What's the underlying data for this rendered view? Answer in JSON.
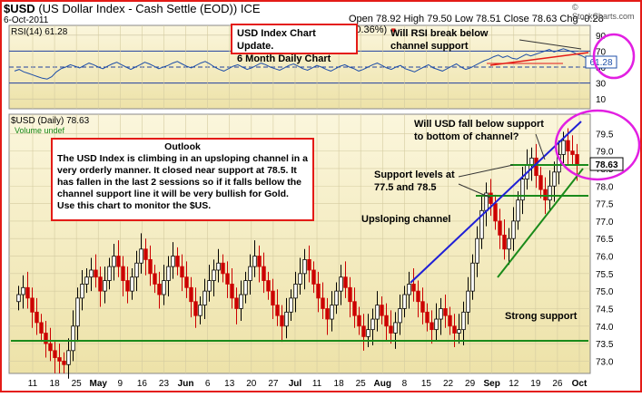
{
  "header": {
    "symbol": "$USD",
    "name": "(US Dollar Index - Cash Settle (EOD))",
    "exchange": "ICE",
    "date": "6-Oct-2011",
    "quote": "Open 78.92  High 79.50  Low 78.51  Close 78.63  Chg -0.28 (-0.36%)",
    "arrow": "▼",
    "watermark": "© StockCharts.com"
  },
  "rsi_panel": {
    "label": "RSI(14) 61.28",
    "current": "61.28",
    "levels": [
      90,
      70,
      50,
      30,
      10
    ],
    "ticks": [
      "90",
      "70",
      "50",
      "30",
      "10"
    ]
  },
  "price_panel": {
    "label": "$USD (Daily) 78.63",
    "volume_label": "Volume undef",
    "current": "78.63",
    "y_ticks": [
      "79.5",
      "79.0",
      "78.5",
      "78.0",
      "77.5",
      "77.0",
      "76.5",
      "76.0",
      "75.5",
      "75.0",
      "74.5",
      "74.0",
      "73.5",
      "73.0"
    ]
  },
  "x_axis": {
    "labels": [
      "11",
      "18",
      "25",
      "May",
      "9",
      "16",
      "23",
      "Jun",
      "6",
      "13",
      "20",
      "27",
      "Jul",
      "11",
      "18",
      "25",
      "Aug",
      "8",
      "15",
      "22",
      "29",
      "Sep",
      "12",
      "19",
      "26",
      "Oct"
    ]
  },
  "annotations": {
    "title_line1": "USD Index Chart Update.",
    "title_line2": "6 Month Daily Chart",
    "rsi_note_line1": "Will RSI break below",
    "rsi_note_line2": "channel support",
    "usd_note_line1": "Will USD fall below support",
    "usd_note_line2": "to bottom of channel?",
    "support_note_line1": "Support levels at",
    "support_note_line2": "77.5 and 78.5",
    "channel_note": "Upsloping channel",
    "strong_support_note": "Strong support",
    "outlook_title": "Outlook",
    "outlook_text": "The USD Index is climbing in an upsloping channel in a very orderly manner. It closed near support at 78.5. It has fallen in the last 2 sessions so if it falls bellow the channel support line it will be very bullish for Gold. Use this chart to monitor the $US."
  },
  "chart_data": [
    {
      "type": "line",
      "title": "RSI(14) 61.28",
      "ylim": [
        0,
        100
      ],
      "reference_lines": [
        70,
        50,
        30
      ],
      "series": [
        {
          "name": "RSI(14)",
          "values": [
            45,
            47,
            44,
            42,
            40,
            38,
            36,
            35,
            38,
            44,
            48,
            50,
            53,
            51,
            49,
            52,
            55,
            53,
            50,
            48,
            51,
            54,
            56,
            53,
            50,
            47,
            50,
            53,
            56,
            54,
            51,
            48,
            50,
            52,
            55,
            57,
            54,
            51,
            49,
            52,
            55,
            57,
            54,
            50,
            47,
            45,
            48,
            51,
            53,
            50,
            47,
            49,
            52,
            55,
            53,
            50,
            48,
            46,
            49,
            52,
            54,
            51,
            48,
            46,
            49,
            52,
            50,
            47,
            45,
            48,
            51,
            53,
            50,
            48,
            45,
            47,
            50,
            53,
            55,
            52,
            49,
            47,
            50,
            52,
            48,
            46,
            44,
            47,
            50,
            53,
            49,
            47,
            45,
            48,
            51,
            54,
            50,
            47,
            49,
            52,
            55,
            58,
            60,
            63,
            65,
            62,
            64,
            61,
            60,
            63,
            66,
            64,
            66,
            68,
            70,
            72,
            69,
            71,
            73,
            71,
            69,
            66,
            64,
            61
          ]
        }
      ]
    },
    {
      "type": "bar",
      "title": "$USD (Daily) 78.63",
      "ylim": [
        72.7,
        80.0
      ],
      "closes": [
        74.9,
        75.1,
        74.8,
        74.4,
        74.1,
        73.8,
        73.5,
        73.3,
        73.1,
        73.0,
        72.9,
        73.3,
        74.0,
        74.8,
        75.2,
        75.4,
        75.6,
        75.4,
        75.0,
        75.3,
        75.7,
        76.0,
        75.7,
        75.3,
        75.0,
        75.4,
        75.8,
        76.2,
        75.9,
        75.5,
        75.2,
        74.9,
        75.3,
        75.7,
        76.0,
        75.7,
        75.4,
        75.1,
        74.7,
        74.3,
        74.6,
        75.0,
        75.3,
        75.6,
        75.8,
        75.5,
        75.2,
        74.8,
        74.5,
        74.9,
        75.3,
        75.7,
        76.0,
        75.7,
        75.3,
        75.0,
        74.6,
        74.3,
        74.0,
        74.4,
        74.8,
        75.2,
        75.5,
        75.9,
        75.6,
        75.2,
        74.8,
        74.5,
        74.2,
        74.6,
        75.0,
        75.4,
        75.1,
        74.7,
        74.3,
        74.0,
        73.7,
        73.9,
        74.2,
        74.6,
        74.3,
        74.0,
        73.8,
        74.1,
        74.5,
        74.9,
        75.2,
        75.0,
        74.7,
        74.4,
        74.1,
        73.9,
        74.2,
        74.5,
        74.3,
        74.0,
        73.8,
        73.9,
        74.4,
        75.0,
        75.8,
        76.5,
        77.3,
        77.8,
        77.5,
        77.0,
        76.6,
        76.2,
        76.5,
        77.0,
        77.6,
        78.2,
        78.6,
        78.8,
        78.3,
        77.9,
        77.6,
        78.0,
        78.4,
        78.9,
        79.3,
        79.0,
        78.9,
        78.6
      ]
    }
  ]
}
